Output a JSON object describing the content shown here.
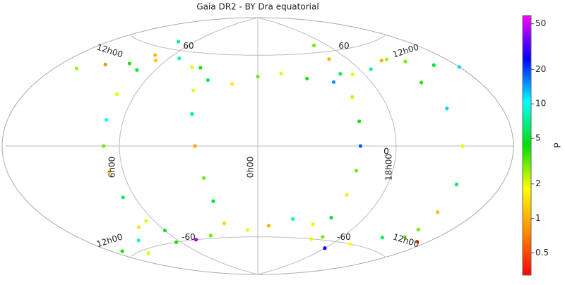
{
  "chart_data": {
    "type": "sky-scatter",
    "title": "Gaia DR2 - BY Dra equatorial",
    "projection": "hammer",
    "grid": true,
    "ra_ticks": [
      {
        "value": 180,
        "label": "12h00"
      },
      {
        "value": 90,
        "label": "6h00"
      },
      {
        "value": 0,
        "label": "0h00"
      },
      {
        "value": 270,
        "label": "18h00"
      }
    ],
    "dec_ticks": [
      60,
      0,
      -60
    ],
    "colorbar": {
      "label": "P",
      "log": true,
      "clim": [
        0.32,
        59
      ],
      "ticks": [
        0.5,
        1,
        2,
        5,
        10,
        20,
        50
      ],
      "colormap": [
        "#ff0000",
        "#ff8c00",
        "#ffff00",
        "#00e000",
        "#00ffff",
        "#0000ff",
        "#ff00ff"
      ]
    },
    "points": {
      "ra": [
        0,
        20,
        40,
        60,
        80,
        100,
        120,
        140,
        160,
        180,
        200,
        220,
        240,
        260,
        280,
        300,
        320,
        340,
        10,
        30,
        50,
        70,
        90,
        110,
        130,
        150,
        170,
        190,
        210,
        230,
        250,
        270,
        290,
        310,
        330,
        350,
        95,
        97,
        99,
        100,
        101,
        102,
        104,
        106,
        108,
        110,
        300,
        298,
        296,
        295,
        294,
        293,
        292,
        290,
        288,
        286,
        30,
        33,
        36,
        40,
        44,
        48,
        52,
        210,
        214,
        218,
        222,
        226,
        230,
        234
      ],
      "dec": [
        45,
        40,
        42,
        50,
        55,
        52,
        48,
        45,
        40,
        38,
        42,
        47,
        50,
        46,
        44,
        40,
        43,
        47,
        -55,
        -50,
        -58,
        -60,
        -52,
        -48,
        -55,
        -62,
        -57,
        -50,
        -45,
        -53,
        -60,
        -65,
        -58,
        -50,
        -47,
        -52,
        -60,
        -45,
        -30,
        -15,
        0,
        15,
        30,
        45,
        55,
        65,
        -60,
        -45,
        -30,
        -15,
        0,
        15,
        30,
        45,
        55,
        65,
        -50,
        -35,
        -20,
        0,
        20,
        35,
        50,
        -50,
        -35,
        -20,
        0,
        20,
        35,
        50
      ],
      "p": [
        3,
        1.5,
        6,
        2,
        8,
        1.2,
        4,
        0.8,
        2.5,
        12,
        5,
        3,
        1,
        7,
        2,
        15,
        4,
        2,
        2,
        0.6,
        3,
        45,
        5,
        1.5,
        9,
        2,
        4,
        0.5,
        3,
        6,
        1.8,
        25,
        3,
        2,
        8,
        1,
        4,
        2,
        6,
        1.3,
        3,
        10,
        2,
        5,
        1,
        7,
        2,
        5,
        1.6,
        3,
        18,
        4,
        2.2,
        6,
        1,
        3,
        1.4,
        5,
        3,
        0.9,
        7,
        2,
        4,
        3,
        1.1,
        6,
        2,
        12,
        4,
        2.5
      ]
    }
  }
}
